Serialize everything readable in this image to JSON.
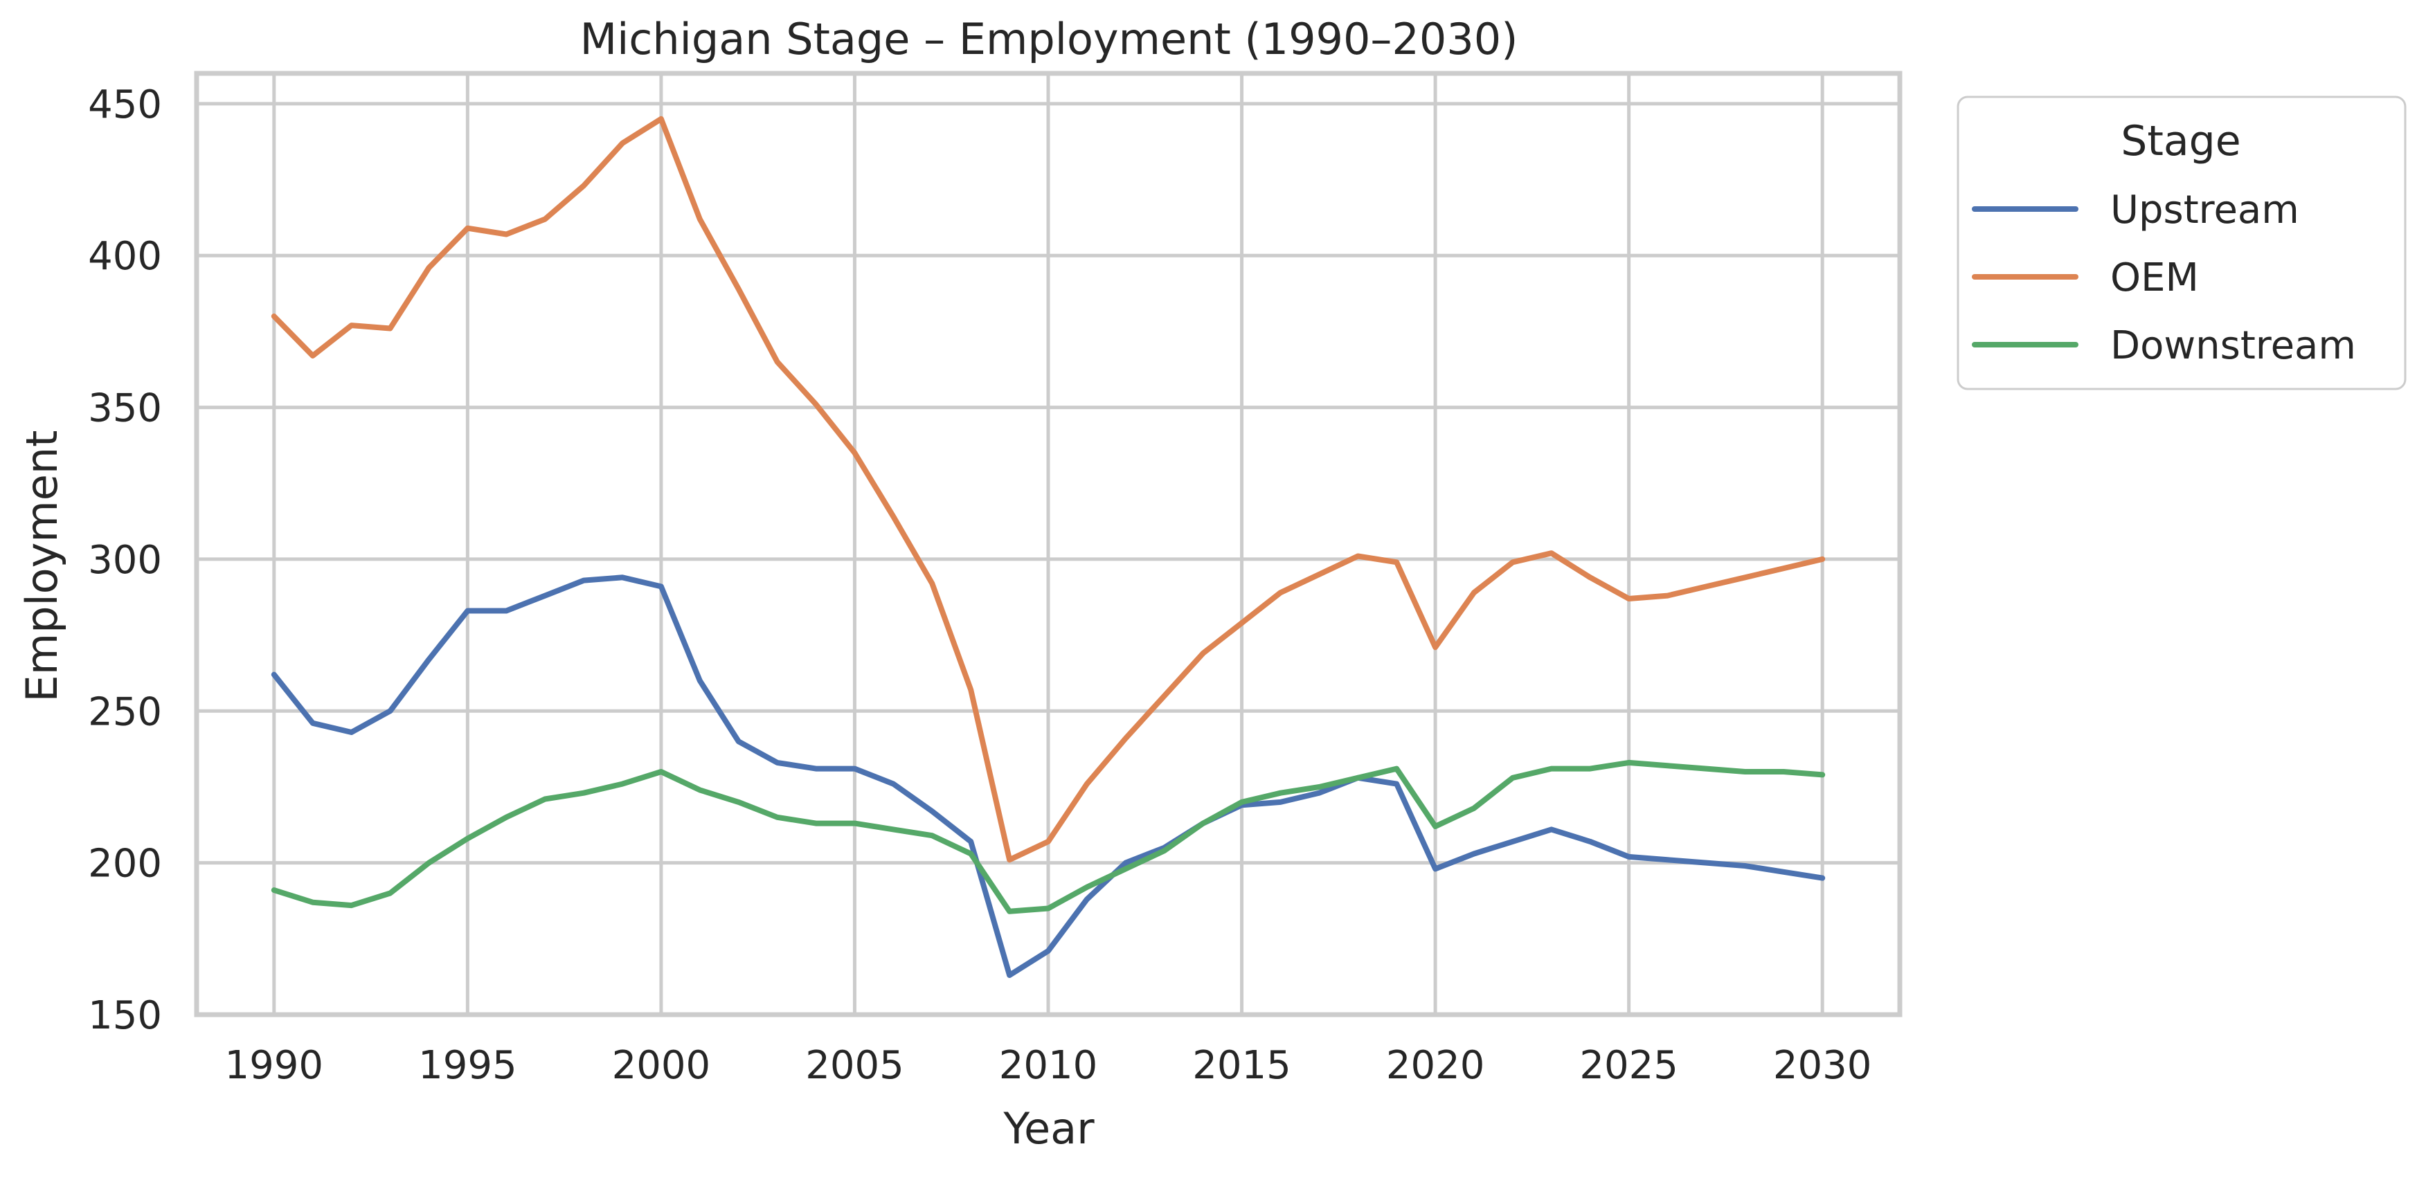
{
  "chart_data": {
    "type": "line",
    "title": "Michigan Stage – Employment (1990–2030)",
    "xlabel": "Year",
    "ylabel": "Employment",
    "xlim": [
      1988,
      2032
    ],
    "ylim": [
      150,
      460
    ],
    "xticks": [
      1990,
      1995,
      2000,
      2005,
      2010,
      2015,
      2020,
      2025,
      2030
    ],
    "yticks": [
      150,
      200,
      250,
      300,
      350,
      400,
      450
    ],
    "grid": true,
    "legend": {
      "title": "Stage",
      "placement": "outside-top-right"
    },
    "x": [
      1990,
      1991,
      1992,
      1993,
      1994,
      1995,
      1996,
      1997,
      1998,
      1999,
      2000,
      2001,
      2002,
      2003,
      2004,
      2005,
      2006,
      2007,
      2008,
      2009,
      2010,
      2011,
      2012,
      2013,
      2014,
      2015,
      2016,
      2017,
      2018,
      2019,
      2020,
      2021,
      2022,
      2023,
      2024,
      2025,
      2026,
      2027,
      2028,
      2029,
      2030
    ],
    "series": [
      {
        "name": "Upstream",
        "color": "#4c72b0",
        "values": [
          262,
          246,
          243,
          250,
          267,
          283,
          283,
          288,
          293,
          294,
          291,
          260,
          240,
          233,
          231,
          231,
          226,
          217,
          207,
          163,
          171,
          188,
          200,
          205,
          213,
          219,
          220,
          223,
          228,
          226,
          198,
          203,
          207,
          211,
          207,
          202,
          201,
          200,
          199,
          197,
          195
        ]
      },
      {
        "name": "OEM",
        "color": "#dd8452",
        "values": [
          380,
          367,
          377,
          376,
          396,
          409,
          407,
          412,
          423,
          437,
          445,
          412,
          389,
          365,
          351,
          335,
          314,
          292,
          257,
          201,
          207,
          226,
          241,
          255,
          269,
          279,
          289,
          295,
          301,
          299,
          271,
          289,
          299,
          302,
          294,
          287,
          288,
          291,
          294,
          297,
          300
        ]
      },
      {
        "name": "Downstream",
        "color": "#55a868",
        "values": [
          191,
          187,
          186,
          190,
          200,
          208,
          215,
          221,
          223,
          226,
          230,
          224,
          220,
          215,
          213,
          213,
          211,
          209,
          203,
          184,
          185,
          192,
          198,
          204,
          213,
          220,
          223,
          225,
          228,
          231,
          212,
          218,
          228,
          231,
          231,
          233,
          232,
          231,
          230,
          230,
          229
        ]
      }
    ]
  }
}
